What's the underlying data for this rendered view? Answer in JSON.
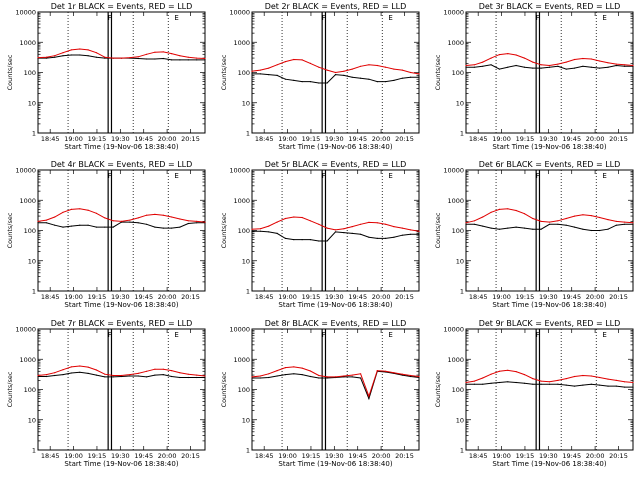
{
  "figure": {
    "background": "#ffffff",
    "events_color": "#000000",
    "lld_color": "#e00000"
  },
  "chart_data": {
    "type": "line",
    "layout": "3x3 grid",
    "scale": "log",
    "ylim": [
      1,
      10000
    ],
    "ytick_labels": [
      "1",
      "10",
      "100",
      "1000",
      "10000"
    ],
    "xlim": [
      0,
      1.0
    ],
    "xtick_labels": [
      "18:45",
      "19:00",
      "19:15",
      "19:30",
      "19:45",
      "20:00",
      "20:15"
    ],
    "xlabel": "Start Time (19-Nov-06 18:38:40)",
    "ylabel": "Counts/sec",
    "markers": {
      "dotted_lines_x": [
        0.18,
        0.57,
        0.78
      ],
      "solid_box_x": [
        0.42,
        0.44
      ],
      "letters": [
        {
          "text": "F",
          "x": 0.43
        },
        {
          "text": "E",
          "x": 0.83
        }
      ]
    },
    "panels": [
      {
        "title": "Det 1r BLACK = Events, RED = LLD",
        "x": [
          0.0,
          0.05,
          0.1,
          0.15,
          0.2,
          0.25,
          0.3,
          0.35,
          0.4,
          0.45,
          0.5,
          0.55,
          0.6,
          0.65,
          0.7,
          0.75,
          0.8,
          0.85,
          0.9,
          0.95,
          1.0
        ],
        "series": [
          {
            "name": "BLACK",
            "values": [
              300,
              300,
              320,
              360,
              380,
              380,
              360,
              320,
              300,
              300,
              300,
              300,
              290,
              280,
              280,
              290,
              260,
              260,
              260,
              260,
              260
            ]
          },
          {
            "name": "RED",
            "values": [
              310,
              320,
              360,
              450,
              560,
              600,
              560,
              450,
              320,
              300,
              300,
              310,
              330,
              400,
              470,
              480,
              420,
              360,
              320,
              300,
              290
            ]
          }
        ]
      },
      {
        "title": "Det 2r BLACK = Events, RED = LLD",
        "x": [
          0.0,
          0.05,
          0.1,
          0.15,
          0.2,
          0.25,
          0.3,
          0.35,
          0.4,
          0.45,
          0.5,
          0.55,
          0.6,
          0.65,
          0.7,
          0.75,
          0.8,
          0.85,
          0.9,
          0.95,
          1.0
        ],
        "series": [
          {
            "name": "BLACK",
            "values": [
              90,
              90,
              85,
              80,
              60,
              55,
              50,
              50,
              45,
              45,
              85,
              80,
              70,
              65,
              60,
              50,
              50,
              55,
              65,
              70,
              70
            ]
          },
          {
            "name": "RED",
            "values": [
              110,
              120,
              140,
              180,
              230,
              270,
              260,
              200,
              150,
              120,
              100,
              110,
              130,
              160,
              180,
              170,
              150,
              130,
              120,
              100,
              90
            ]
          }
        ]
      },
      {
        "title": "Det 3r BLACK = Events, RED = LLD",
        "x": [
          0.0,
          0.05,
          0.1,
          0.15,
          0.2,
          0.25,
          0.3,
          0.35,
          0.4,
          0.45,
          0.5,
          0.55,
          0.6,
          0.65,
          0.7,
          0.75,
          0.8,
          0.85,
          0.9,
          0.95,
          1.0
        ],
        "series": [
          {
            "name": "BLACK",
            "values": [
              150,
              150,
              160,
              180,
              130,
              150,
              170,
              150,
              140,
              140,
              150,
              160,
              130,
              140,
              160,
              150,
              140,
              150,
              170,
              160,
              160
            ]
          },
          {
            "name": "RED",
            "values": [
              170,
              180,
              220,
              300,
              390,
              420,
              380,
              300,
              220,
              180,
              170,
              190,
              220,
              270,
              290,
              280,
              240,
              210,
              190,
              180,
              170
            ]
          }
        ]
      },
      {
        "title": "Det 4r BLACK = Events, RED = LLD",
        "x": [
          0.0,
          0.05,
          0.1,
          0.15,
          0.2,
          0.25,
          0.3,
          0.35,
          0.4,
          0.45,
          0.5,
          0.55,
          0.6,
          0.65,
          0.7,
          0.75,
          0.8,
          0.85,
          0.9,
          0.95,
          1.0
        ],
        "series": [
          {
            "name": "BLACK",
            "values": [
              180,
              180,
              150,
              130,
              140,
              150,
              150,
              130,
              130,
              130,
              190,
              190,
              180,
              160,
              130,
              120,
              120,
              130,
              170,
              180,
              180
            ]
          },
          {
            "name": "RED",
            "values": [
              200,
              220,
              280,
              400,
              500,
              520,
              470,
              370,
              260,
              210,
              200,
              220,
              260,
              320,
              340,
              320,
              280,
              240,
              210,
              200,
              190
            ]
          }
        ]
      },
      {
        "title": "Det 5r BLACK = Events, RED = LLD",
        "x": [
          0.0,
          0.05,
          0.1,
          0.15,
          0.2,
          0.25,
          0.3,
          0.35,
          0.4,
          0.45,
          0.5,
          0.55,
          0.6,
          0.65,
          0.7,
          0.75,
          0.8,
          0.85,
          0.9,
          0.95,
          1.0
        ],
        "series": [
          {
            "name": "BLACK",
            "values": [
              95,
              95,
              90,
              80,
              55,
              50,
              50,
              50,
              45,
              45,
              90,
              85,
              80,
              75,
              60,
              55,
              55,
              60,
              70,
              75,
              75
            ]
          },
          {
            "name": "RED",
            "values": [
              110,
              115,
              140,
              190,
              250,
              280,
              270,
              210,
              160,
              120,
              105,
              115,
              135,
              160,
              185,
              180,
              160,
              135,
              120,
              105,
              95
            ]
          }
        ]
      },
      {
        "title": "Det 6r BLACK = Events, RED = LLD",
        "x": [
          0.0,
          0.05,
          0.1,
          0.15,
          0.2,
          0.25,
          0.3,
          0.35,
          0.4,
          0.45,
          0.5,
          0.55,
          0.6,
          0.65,
          0.7,
          0.75,
          0.8,
          0.85,
          0.9,
          0.95,
          1.0
        ],
        "series": [
          {
            "name": "BLACK",
            "values": [
              160,
              160,
              140,
              120,
              110,
              120,
              130,
              120,
              110,
              110,
              160,
              160,
              150,
              130,
              110,
              100,
              100,
              110,
              150,
              160,
              160
            ]
          },
          {
            "name": "RED",
            "values": [
              180,
              210,
              280,
              400,
              500,
              520,
              460,
              360,
              250,
              200,
              190,
              210,
              250,
              300,
              330,
              310,
              270,
              230,
              200,
              190,
              180
            ]
          }
        ]
      },
      {
        "title": "Det 7r BLACK = Events, RED = LLD",
        "x": [
          0.0,
          0.05,
          0.1,
          0.15,
          0.2,
          0.25,
          0.3,
          0.35,
          0.4,
          0.45,
          0.5,
          0.55,
          0.6,
          0.65,
          0.7,
          0.75,
          0.8,
          0.85,
          0.9,
          0.95,
          1.0
        ],
        "series": [
          {
            "name": "BLACK",
            "values": [
              270,
              270,
              290,
              310,
              350,
              370,
              340,
              300,
              260,
              260,
              270,
              280,
              280,
              260,
              300,
              310,
              270,
              250,
              250,
              250,
              250
            ]
          },
          {
            "name": "RED",
            "values": [
              290,
              310,
              360,
              450,
              560,
              600,
              550,
              440,
              320,
              290,
              290,
              310,
              340,
              400,
              470,
              470,
              420,
              360,
              320,
              300,
              280
            ]
          }
        ]
      },
      {
        "title": "Det 8r BLACK = Events, RED = LLD",
        "x": [
          0.0,
          0.05,
          0.1,
          0.15,
          0.2,
          0.25,
          0.3,
          0.35,
          0.4,
          0.45,
          0.5,
          0.55,
          0.6,
          0.65,
          0.7,
          0.75,
          0.8,
          0.85,
          0.9,
          0.95,
          1.0
        ],
        "series": [
          {
            "name": "BLACK",
            "values": [
              240,
              240,
              250,
              280,
              310,
              330,
              310,
              270,
              240,
              240,
              250,
              260,
              260,
              240,
              50,
              400,
              380,
              340,
              300,
              270,
              250
            ]
          },
          {
            "name": "RED",
            "values": [
              260,
              280,
              330,
              420,
              530,
              560,
              510,
              410,
              290,
              260,
              260,
              280,
              300,
              330,
              60,
              420,
              400,
              360,
              320,
              290,
              270
            ]
          }
        ]
      },
      {
        "title": "Det 9r BLACK = Events, RED = LLD",
        "x": [
          0.0,
          0.05,
          0.1,
          0.15,
          0.2,
          0.25,
          0.3,
          0.35,
          0.4,
          0.45,
          0.5,
          0.55,
          0.6,
          0.65,
          0.7,
          0.75,
          0.8,
          0.85,
          0.9,
          0.95,
          1.0
        ],
        "series": [
          {
            "name": "BLACK",
            "values": [
              150,
              150,
              150,
              160,
              170,
              180,
              170,
              160,
              150,
              150,
              150,
              150,
              140,
              130,
              140,
              150,
              140,
              130,
              130,
              120,
              120
            ]
          },
          {
            "name": "RED",
            "values": [
              170,
              190,
              240,
              320,
              400,
              430,
              390,
              310,
              230,
              190,
              180,
              200,
              230,
              270,
              290,
              280,
              250,
              220,
              200,
              180,
              170
            ]
          }
        ]
      }
    ]
  }
}
